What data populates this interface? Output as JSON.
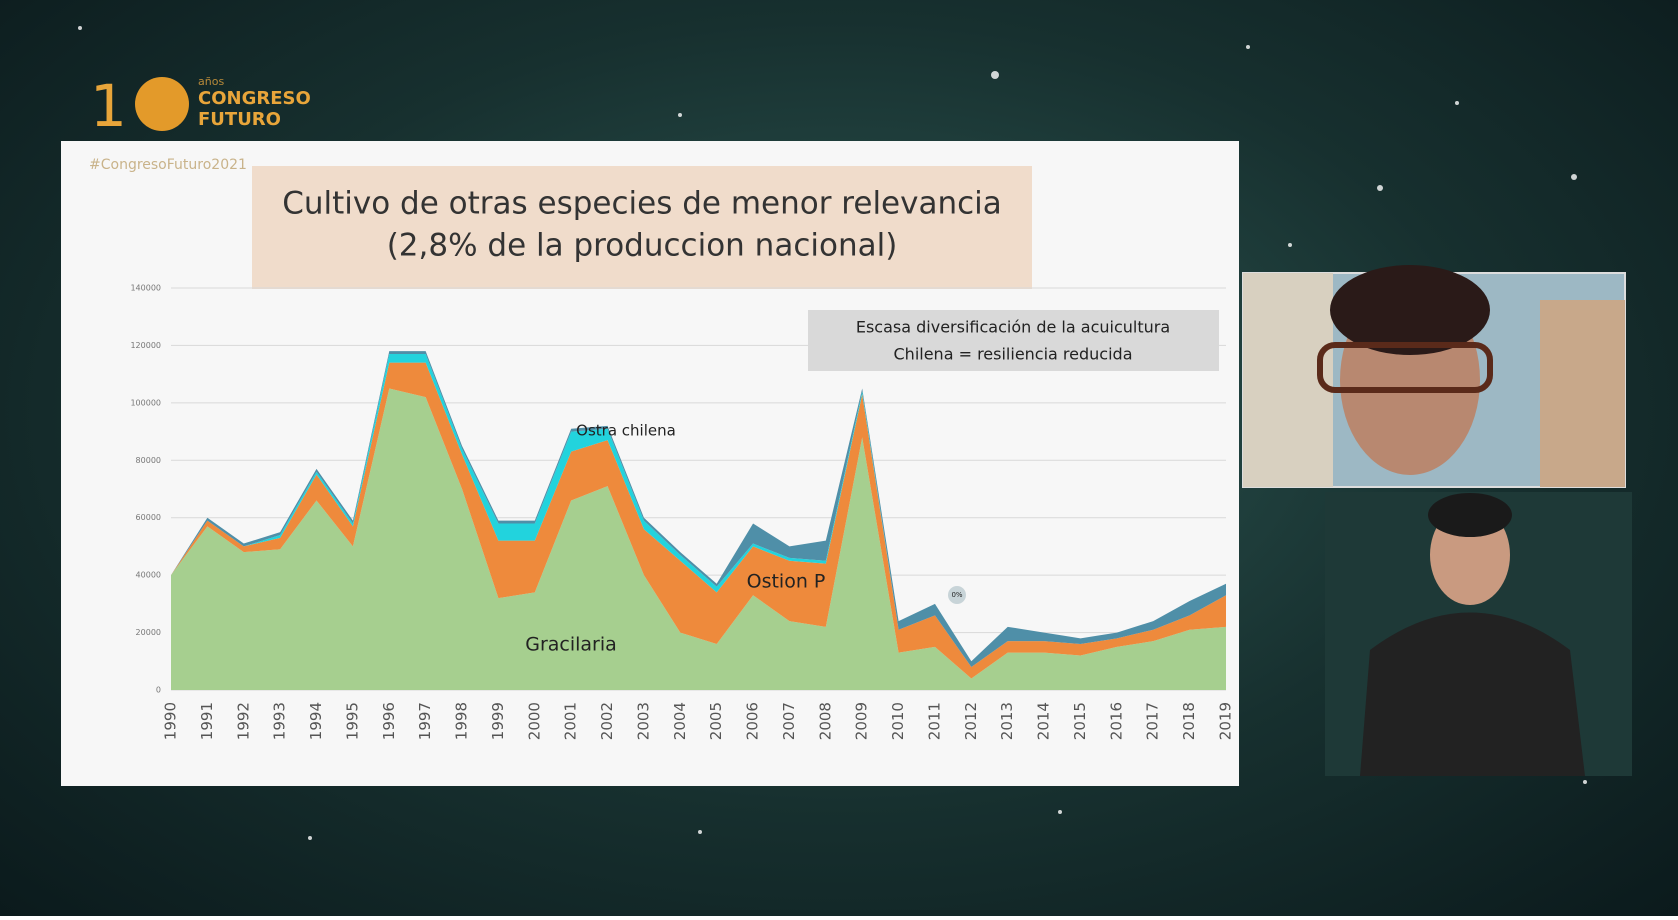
{
  "header": {
    "logo_number": "1",
    "logo_small": "años",
    "logo_line1": "CONGRESO",
    "logo_line2": "FUTURO"
  },
  "slide": {
    "hashtag": "#CongresoFuturo2021",
    "title_line1": "Cultivo de otras especies de menor relevancia",
    "title_line2": "(2,8% de la produccion nacional)",
    "note_line1": "Escasa diversificación de la acuicultura",
    "note_line2": "Chilena  = resiliencia reducida"
  },
  "chart_data": {
    "type": "area",
    "categories": [
      "1990",
      "1991",
      "1992",
      "1993",
      "1994",
      "1995",
      "1996",
      "1997",
      "1998",
      "1999",
      "2000",
      "2001",
      "2002",
      "2003",
      "2004",
      "2005",
      "2006",
      "2007",
      "2008",
      "2009",
      "2010",
      "2011",
      "2012",
      "2013",
      "2014",
      "2015",
      "2016",
      "2017",
      "2018",
      "2019"
    ],
    "series": [
      {
        "name": "Gracilaria",
        "color": "#a6cf8f",
        "values": [
          40000,
          57000,
          48000,
          49000,
          66000,
          50000,
          105000,
          102000,
          70000,
          32000,
          34000,
          66000,
          71000,
          40000,
          20000,
          16000,
          33000,
          24000,
          22000,
          88000,
          13000,
          15000,
          4000,
          13000,
          13000,
          12000,
          15000,
          17000,
          21000,
          22000
        ]
      },
      {
        "name": "Ostion P",
        "color": "#ee8a3c",
        "values": [
          0,
          2000,
          2000,
          4000,
          9000,
          7000,
          9000,
          12000,
          12000,
          20000,
          18000,
          17000,
          16000,
          16000,
          25000,
          18000,
          17000,
          21000,
          22000,
          15000,
          8000,
          11000,
          4000,
          4000,
          4000,
          4000,
          3000,
          4000,
          5000,
          11000
        ]
      },
      {
        "name": "Ostra chilena",
        "color": "#22d3dd",
        "values": [
          0,
          0,
          0,
          1000,
          1000,
          1000,
          3000,
          3000,
          2000,
          6000,
          6000,
          7000,
          4000,
          3000,
          2000,
          2000,
          1000,
          1000,
          1000,
          1000,
          0,
          0,
          0,
          0,
          0,
          0,
          0,
          0,
          0,
          0
        ]
      },
      {
        "color": "#4f8fa8",
        "values": [
          0,
          1000,
          1000,
          1000,
          1000,
          1000,
          1000,
          1000,
          1000,
          1000,
          1000,
          1000,
          1000,
          1000,
          1000,
          1000,
          7000,
          4000,
          7000,
          1000,
          3000,
          4000,
          2000,
          5000,
          3000,
          2000,
          2000,
          3000,
          5000,
          4000
        ]
      }
    ],
    "ylim": [
      0,
      140000
    ],
    "yticks": [
      0,
      20000,
      40000,
      60000,
      80000,
      100000,
      120000,
      140000
    ],
    "grid": true,
    "annotations": [
      "Ostra chilena",
      "Ostion P",
      "Gracilaria",
      "0%"
    ]
  }
}
